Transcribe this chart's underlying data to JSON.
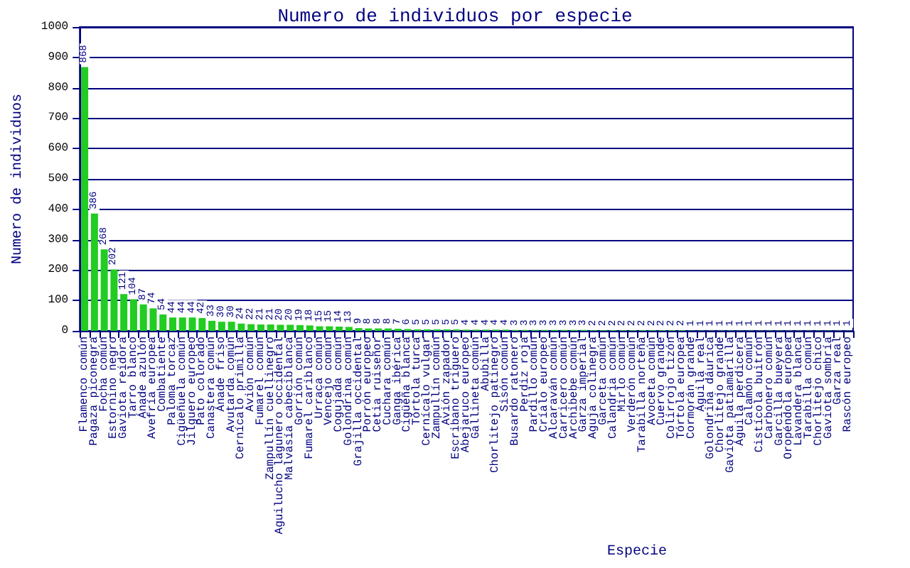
{
  "chart_data": {
    "type": "bar",
    "title": "Numero de individuos por especie",
    "xlabel": "Especie",
    "ylabel": "Numero de individuos",
    "categories": [
      "Flamenco común",
      "Pagaza piconegra",
      "Focha común",
      "Estornino negro",
      "Gaviota reidora",
      "Tarro blanco",
      "Ánade azulón",
      "Avefría europea",
      "Combatiente",
      "Paloma torcaz",
      "Cigüeñuela común",
      "Jilguero europeo",
      "Pato colorado",
      "Canastera común",
      "Ánade friso",
      "Avutarda común",
      "Cernícalo primilla",
      "Avión común",
      "Fumarel común",
      "Zampullín cuellinegro",
      "Aguilucho lagunero occidental",
      "Malvasía cabeciblanca",
      "Gorrión común",
      "Fumarel cariblanco",
      "Urraca común",
      "Vencejo común",
      "Cogujada común",
      "Golondrina común",
      "Grajilla occidental",
      "Porrón europeo",
      "Cetia ruiseñor",
      "Cuchara común",
      "Ganga ibérica",
      "Cigüeña blanca",
      "Tórtola turca",
      "Cernícalo vulgar",
      "Zampullín común",
      "Avión zapador",
      "Escribano triguero",
      "Abejaruco europeo",
      "Gallineta común",
      "Abubilla",
      "Chorlitejo patinegro",
      "Sisón común",
      "Busardo ratonero",
      "Perdiz roja",
      "Pardillo común",
      "Críalo europeo",
      "Alcaraván común",
      "Carricero común",
      "Archibebe común",
      "Garza imperial",
      "Aguja colinegra",
      "Garceta común",
      "Calandria común",
      "Mirlo común",
      "Verderón común",
      "Tarabilla norteña",
      "Avoceta común",
      "Cuervo grande",
      "Colirrojo tizón",
      "Tórtola europea",
      "Cormorán grande",
      "Águila real",
      "Golondrina dáurica",
      "Chorlitejo grande",
      "Gaviota patiamarilla",
      "Águila perdicera",
      "Calamón común",
      "Cistícola buitrón",
      "Carbonero común",
      "Garcilla bueyera",
      "Oropéndola europea",
      "Lavandera blanca",
      "Tarabilla común",
      "Chorlitejo chico",
      "Gaviota sombría",
      "Garza real",
      "Rascón europeo"
    ],
    "values": [
      868,
      386,
      268,
      202,
      121,
      104,
      87,
      74,
      54,
      44,
      44,
      44,
      42,
      33,
      30,
      30,
      24,
      22,
      21,
      21,
      20,
      20,
      19,
      18,
      15,
      15,
      14,
      13,
      9,
      8,
      8,
      8,
      7,
      6,
      5,
      5,
      5,
      5,
      5,
      4,
      4,
      4,
      4,
      4,
      3,
      3,
      3,
      3,
      3,
      3,
      3,
      3,
      2,
      2,
      2,
      2,
      2,
      2,
      2,
      2,
      2,
      2,
      1,
      1,
      1,
      1,
      1,
      1,
      1,
      1,
      1,
      1,
      1,
      1,
      1,
      1,
      1,
      1,
      1
    ],
    "color": "#22cc22",
    "ylim": [
      0,
      1000
    ],
    "yticks": [
      0,
      100,
      200,
      300,
      400,
      500,
      600,
      700,
      800,
      900,
      1000
    ],
    "grid": "y",
    "data_labels": true
  }
}
